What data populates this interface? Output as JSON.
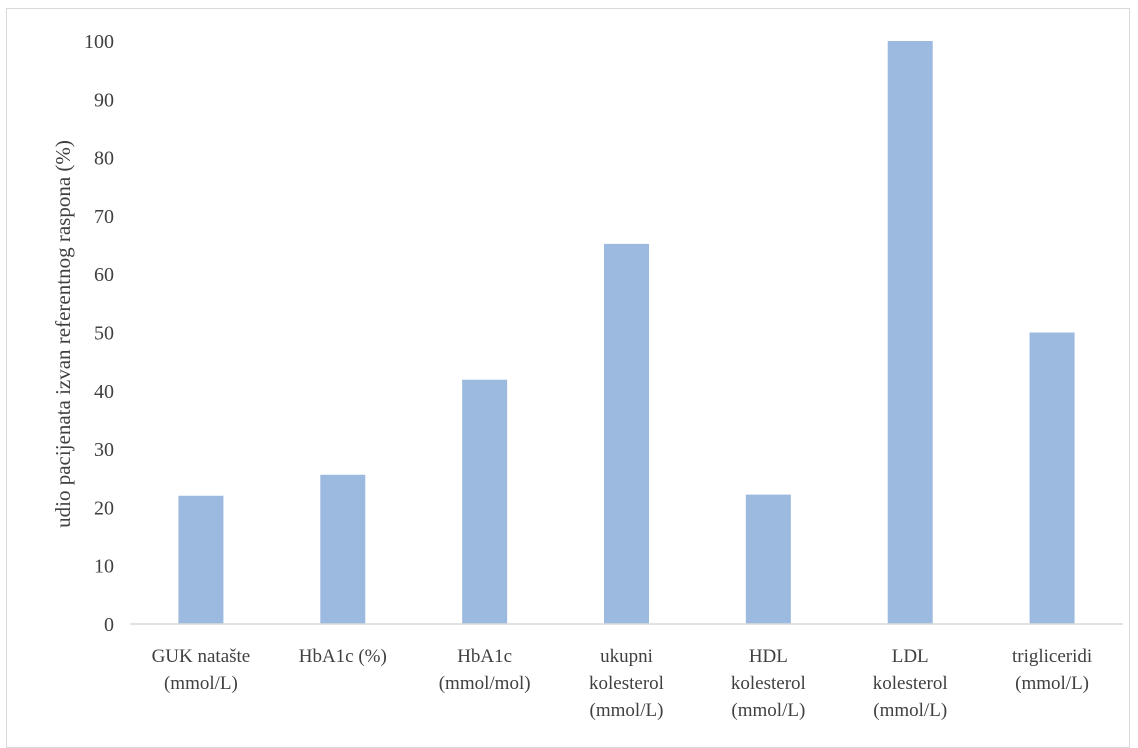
{
  "chart_data": {
    "type": "bar",
    "title": "",
    "xlabel": "",
    "ylabel": "udio pacijenata izvan referentnog raspona (%)",
    "ylim": [
      0,
      100
    ],
    "yticks": [
      0,
      10,
      20,
      30,
      40,
      50,
      60,
      70,
      80,
      90,
      100
    ],
    "grid": false,
    "legend": "none",
    "bar_color": "#9cbae0",
    "categories": [
      [
        "GUK natašte",
        "(mmol/L)"
      ],
      [
        "HbA1c (%)"
      ],
      [
        "HbA1c",
        "(mmol/mol)"
      ],
      [
        "ukupni",
        "kolesterol",
        "(mmol/L)"
      ],
      [
        "HDL",
        "kolesterol",
        "(mmol/L)"
      ],
      [
        "LDL",
        "kolesterol",
        "(mmol/L)"
      ],
      [
        "trigliceridi",
        "(mmol/L)"
      ]
    ],
    "values": [
      22,
      25.6,
      41.9,
      65.2,
      22.2,
      100,
      50
    ]
  }
}
